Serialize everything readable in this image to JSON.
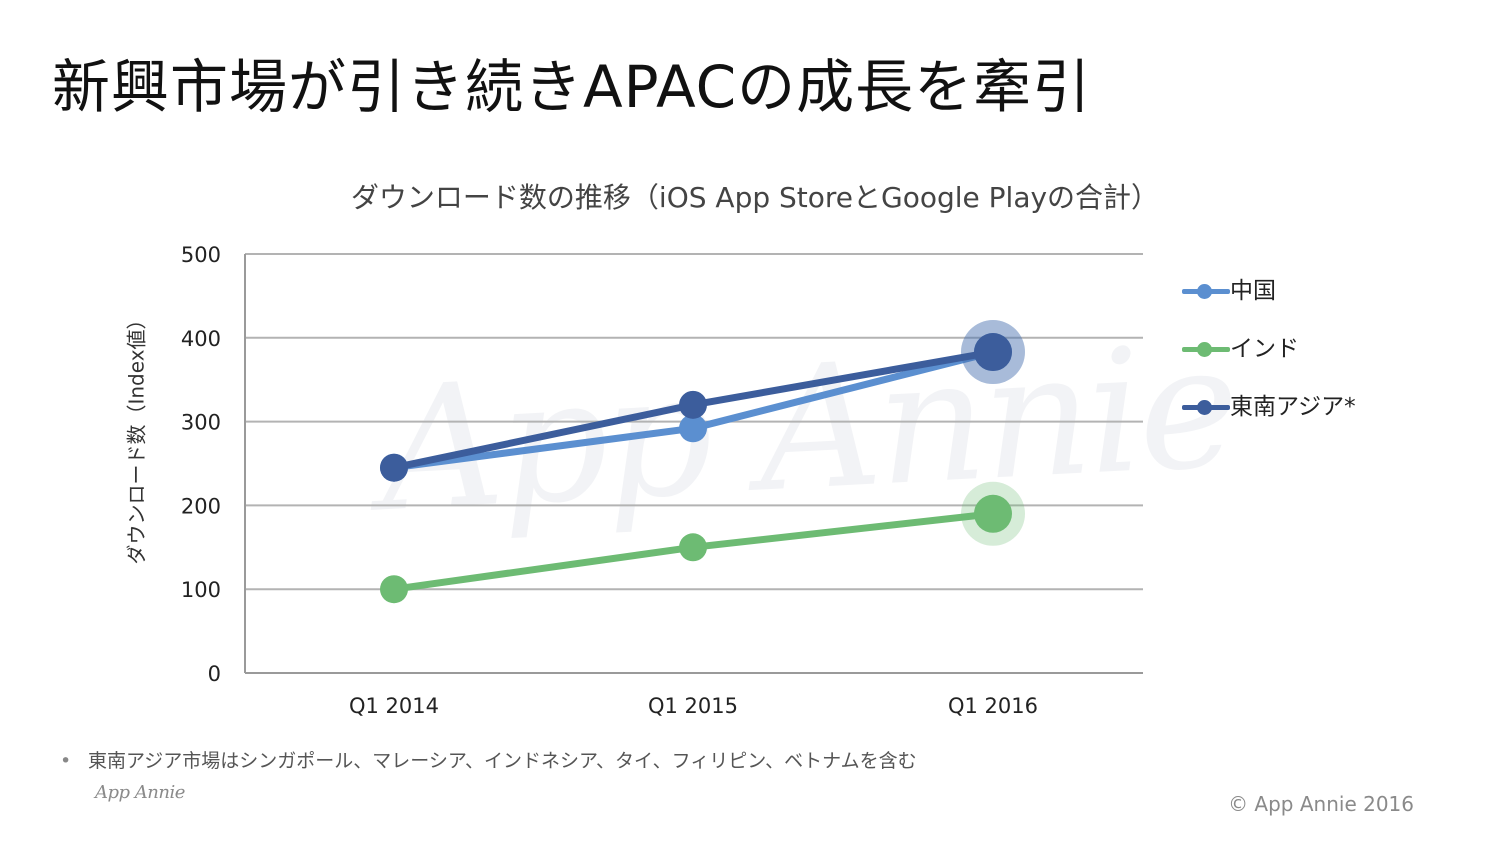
{
  "slide": {
    "title": "新興市場が引き続きAPACの成長を牽引",
    "footnote": "東南アジア市場はシンガポール、マレーシア、インドネシア、タイ、フィリピン、ベトナムを含む",
    "bullet": "•",
    "logo_text": "App Annie",
    "copyright": "© App Annie 2016",
    "watermark_text": "App Annie"
  },
  "chart_data": {
    "type": "line",
    "title": "ダウンロード数の推移（iOS App StoreとGoogle Playの合計）",
    "xlabel": "",
    "ylabel": "ダウンロード数（Index値）",
    "categories": [
      "Q1 2014",
      "Q1 2015",
      "Q1 2016"
    ],
    "ylim": [
      0,
      500
    ],
    "yticks": [
      0,
      100,
      200,
      300,
      400,
      500
    ],
    "grid": true,
    "legend_position": "right",
    "series": [
      {
        "name": "中国",
        "values": [
          245,
          292,
          383
        ],
        "color": "#5b8fd0"
      },
      {
        "name": "インド",
        "values": [
          100,
          150,
          190
        ],
        "color": "#6dbb73"
      },
      {
        "name": "東南アジア*",
        "values": [
          245,
          320,
          383
        ],
        "color": "#3c5d9c"
      }
    ],
    "highlight_last_point": true
  }
}
